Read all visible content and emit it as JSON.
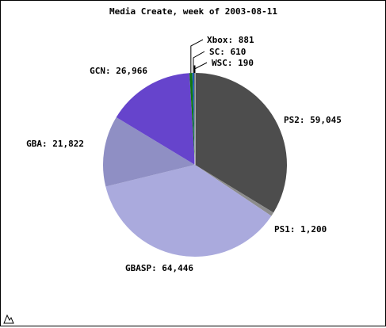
{
  "chart_data": {
    "type": "pie",
    "title": "Media Create, week of 2003-08-11",
    "slices": [
      {
        "label": "PS2",
        "value": 59045,
        "display": "PS2: 59,045",
        "color": "#4d4d4d",
        "explode": false
      },
      {
        "label": "PS1",
        "value": 1200,
        "display": "PS1: 1,200",
        "color": "#8c8c8c",
        "explode": false
      },
      {
        "label": "GBASP",
        "value": 64446,
        "display": "GBASP: 64,446",
        "color": "#aaaadd",
        "explode": false
      },
      {
        "label": "GBA",
        "value": 21822,
        "display": "GBA: 21,822",
        "color": "#8f8fc4",
        "explode": false
      },
      {
        "label": "GCN",
        "value": 26966,
        "display": "GCN: 26,966",
        "color": "#6644cc",
        "explode": false
      },
      {
        "label": "Xbox",
        "value": 881,
        "display": "Xbox: 881",
        "color": "#117711",
        "explode": false
      },
      {
        "label": "SC",
        "value": 610,
        "display": "SC: 610",
        "color": "#2266cc",
        "explode": false
      },
      {
        "label": "WSC",
        "value": 190,
        "display": "WSC: 190",
        "color": "#ffffff",
        "explode": true
      }
    ],
    "start_angle_deg": 0,
    "direction": "clockwise",
    "legend": "none"
  }
}
